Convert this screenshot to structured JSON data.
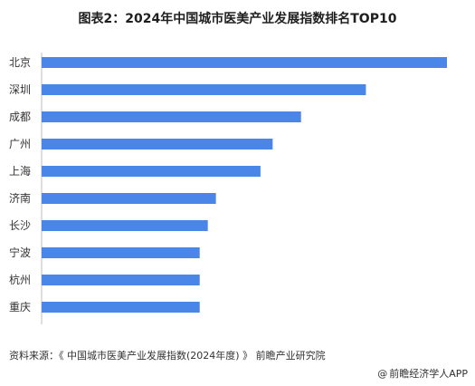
{
  "title": "图表2：2024年中国城市医美产业发展指数排名TOP10",
  "source": "资料来源：《 中国城市医美产业发展指数(2024年度) 》 前瞻产业研究院",
  "credit": {
    "symbol": "@",
    "text": "前瞻经济学人APP"
  },
  "colors": {
    "bar": "#4a86e8",
    "axis": "#bfbfbf"
  },
  "chart_data": {
    "type": "bar",
    "orientation": "horizontal",
    "title": "图表2：2024年中国城市医美产业发展指数排名TOP10",
    "categories": [
      "北京",
      "深圳",
      "成都",
      "广州",
      "上海",
      "济南",
      "长沙",
      "宁波",
      "杭州",
      "重庆"
    ],
    "values": [
      100,
      80,
      64,
      57,
      54,
      43,
      41,
      39,
      39,
      39
    ],
    "xlabel": "",
    "ylabel": "",
    "xlim": [
      0,
      100
    ],
    "grid": false,
    "legend": "none"
  }
}
